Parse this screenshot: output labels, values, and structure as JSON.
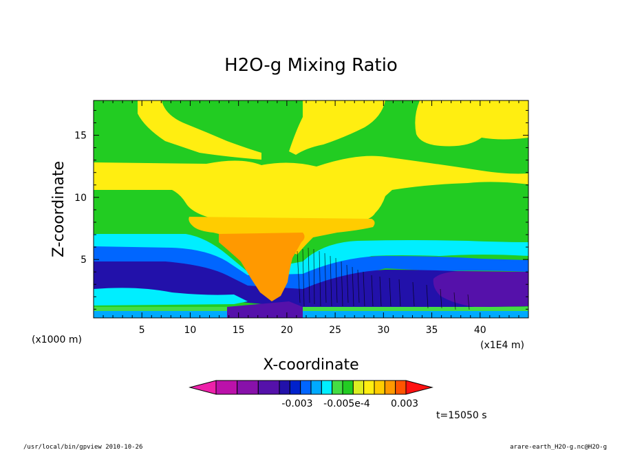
{
  "chart_data": {
    "type": "heatmap",
    "title": "H2O-g Mixing Ratio",
    "xlabel": "X-coordinate",
    "ylabel": "Z-coordinate",
    "x_unit": "(x1000 m)",
    "x_unit_right": "(x1E4 m)",
    "xlim": [
      0,
      45
    ],
    "ylim": [
      0.3,
      17.8
    ],
    "x_ticks": [
      "5",
      "10",
      "15",
      "20",
      "25",
      "30",
      "35",
      "40"
    ],
    "y_ticks": [
      "5",
      "10",
      "15"
    ],
    "time_label": "t=15050 s",
    "colorbar": {
      "colors": [
        "#ee22aa",
        "#bb11aa",
        "#8811aa",
        "#5511aa",
        "#2211aa",
        "#0022cc",
        "#0066ff",
        "#00aaff",
        "#00eeff",
        "#44dd44",
        "#22cc22",
        "#ddee22",
        "#ffee11",
        "#ffcc00",
        "#ff9900",
        "#ff5500",
        "#ff1111"
      ],
      "tick_labels": [
        "-0.003",
        "-0.005e-4",
        "0.003"
      ]
    },
    "regions": [
      {
        "name": "upper background",
        "color": "#22cc22"
      },
      {
        "name": "moist layer 11-13 km",
        "color": "#ffee11"
      },
      {
        "name": "anvil 8-9 km",
        "color": "#ffcc00"
      },
      {
        "name": "updraft core",
        "color": "#ff9900"
      },
      {
        "name": "mid layer",
        "color": "#00eeff"
      },
      {
        "name": "lower layer",
        "color": "#0066ff"
      },
      {
        "name": "deep dry layer",
        "color": "#2211aa"
      },
      {
        "name": "dry patch",
        "color": "#5511aa"
      }
    ]
  },
  "footer": {
    "left": "/usr/local/bin/gpview  2010-10-26",
    "right": "arare-earth_H2O-g.nc@H2O-g"
  }
}
